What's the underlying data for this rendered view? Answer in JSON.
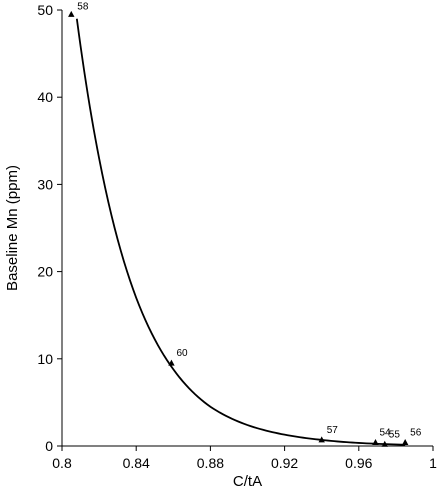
{
  "chart_data": {
    "type": "scatter",
    "xlabel": "C/tA",
    "ylabel": "Baseline Mn (ppm)",
    "xlim": [
      0.8,
      1.0
    ],
    "ylim": [
      0,
      50
    ],
    "x_ticks": [
      "0.8",
      "0.84",
      "0.88",
      "0.92",
      "0.96",
      "1"
    ],
    "y_ticks": [
      "0",
      "10",
      "20",
      "30",
      "40",
      "50"
    ],
    "x_tick_values": [
      0.8,
      0.84,
      0.88,
      0.92,
      0.96,
      1.0
    ],
    "y_tick_values": [
      0,
      10,
      20,
      30,
      40,
      50
    ],
    "grid": false,
    "legend": "none",
    "points": [
      {
        "label": "58",
        "x": 0.805,
        "y": 49.5
      },
      {
        "label": "60",
        "x": 0.859,
        "y": 9.5
      },
      {
        "label": "57",
        "x": 0.94,
        "y": 0.7
      },
      {
        "label": "54",
        "x": 0.969,
        "y": 0.4
      },
      {
        "label": "55",
        "x": 0.974,
        "y": 0.2
      },
      {
        "label": "56",
        "x": 0.985,
        "y": 0.4
      }
    ],
    "fit_curve": {
      "type": "exponential",
      "x": [
        0.808,
        0.82,
        0.84,
        0.86,
        0.88,
        0.9,
        0.92,
        0.94,
        0.96,
        0.985
      ],
      "y": [
        49,
        33,
        17,
        8.8,
        4.5,
        2.4,
        1.3,
        0.7,
        0.35,
        0.15
      ]
    }
  }
}
